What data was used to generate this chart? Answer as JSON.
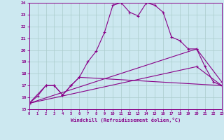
{
  "xlabel": "Windchill (Refroidissement éolien,°C)",
  "bg_color": "#cce8f0",
  "line_color": "#880088",
  "grid_color": "#aacccc",
  "xmin": 0,
  "xmax": 23,
  "ymin": 15,
  "ymax": 24,
  "line1_x": [
    0,
    1,
    2,
    3,
    4,
    5,
    6,
    7,
    8,
    9,
    10,
    11,
    12,
    13,
    14,
    15,
    16,
    17,
    18,
    19,
    20,
    21,
    22,
    23
  ],
  "line1_y": [
    15.5,
    16.1,
    17.0,
    17.0,
    16.2,
    17.0,
    17.7,
    19.0,
    19.9,
    21.5,
    23.8,
    24.0,
    23.2,
    22.9,
    24.0,
    23.8,
    23.2,
    21.1,
    20.8,
    20.1,
    20.1,
    18.6,
    17.3,
    17.0
  ],
  "line2_x": [
    0,
    2,
    3,
    4,
    5,
    6,
    23
  ],
  "line2_y": [
    15.5,
    17.0,
    17.0,
    16.2,
    17.0,
    17.7,
    17.0
  ],
  "line3_x": [
    0,
    20,
    23
  ],
  "line3_y": [
    15.5,
    20.1,
    17.3
  ],
  "line4_x": [
    0,
    20,
    23
  ],
  "line4_y": [
    15.5,
    18.6,
    17.0
  ],
  "xtick_labels": [
    "0",
    "1",
    "2",
    "3",
    "4",
    "5",
    "6",
    "7",
    "8",
    "9",
    "10",
    "11",
    "12",
    "13",
    "14",
    "15",
    "16",
    "17",
    "18",
    "19",
    "20",
    "21",
    "22",
    "23"
  ],
  "ytick_labels": [
    "15",
    "16",
    "17",
    "18",
    "19",
    "20",
    "21",
    "22",
    "23",
    "24"
  ]
}
